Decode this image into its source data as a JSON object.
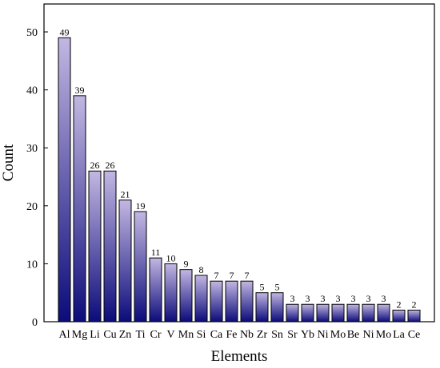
{
  "chart_data": {
    "type": "bar",
    "categories": [
      "Al",
      "Mg",
      "Li",
      "Cu",
      "Zn",
      "Ti",
      "Cr",
      "V",
      "Mn",
      "Si",
      "Ca",
      "Fe",
      "Nb",
      "Zr",
      "Sn",
      "Sr",
      "Yb",
      "Ni",
      "Mo",
      "Be",
      "Ni",
      "Mo",
      "La",
      "Ce"
    ],
    "values": [
      49,
      39,
      26,
      26,
      21,
      19,
      11,
      10,
      9,
      8,
      7,
      7,
      7,
      5,
      5,
      3,
      3,
      3,
      3,
      3,
      3,
      3,
      2,
      2
    ],
    "xlabel": "Elements",
    "ylabel": "Count",
    "ylim": [
      0,
      55
    ],
    "yticks": [
      0,
      10,
      20,
      30,
      40,
      50
    ],
    "grid": false,
    "bar_color_top": "#c3b7e2",
    "bar_color_bottom": "#0b0b7a",
    "bar_border": "#000000"
  }
}
